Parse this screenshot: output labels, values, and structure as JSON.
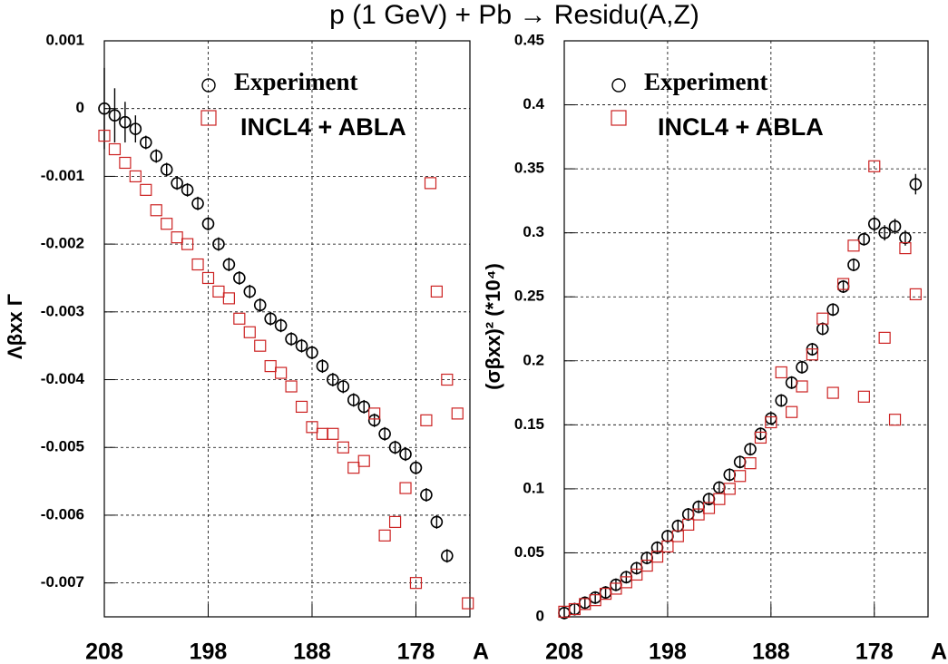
{
  "title": "p (1 GeV) + Pb → Residu(A,Z)",
  "chart_data": [
    {
      "type": "scatter",
      "xlabel": "A",
      "ylabel": "Λβxx Γ",
      "legend": "top-left",
      "xlim": [
        208,
        172.8
      ],
      "xticks": [
        208,
        198,
        188,
        178
      ],
      "ylim": [
        -0.0075,
        0.001
      ],
      "yticks": [
        0.001,
        0,
        -0.001,
        -0.002,
        -0.003,
        -0.004,
        -0.005,
        -0.006,
        -0.007
      ],
      "grid": true,
      "series": [
        {
          "name": "Experiment",
          "color": "#000000",
          "marker": "circle",
          "x": [
            208,
            207,
            206,
            205,
            204,
            203,
            202,
            201,
            200,
            199,
            198,
            197,
            196,
            195,
            194,
            193,
            192,
            191,
            190,
            189,
            188,
            187,
            186,
            185,
            184,
            183,
            182,
            181,
            180,
            179,
            178,
            177,
            176,
            175
          ],
          "values": [
            0,
            -0.0001,
            -0.0002,
            -0.0003,
            -0.0005,
            -0.0007,
            -0.0009,
            -0.0011,
            -0.0012,
            -0.0014,
            -0.0017,
            -0.002,
            -0.0023,
            -0.0025,
            -0.0027,
            -0.0029,
            -0.0031,
            -0.0032,
            -0.0034,
            -0.0035,
            -0.0036,
            -0.0038,
            -0.004,
            -0.0041,
            -0.0043,
            -0.0044,
            -0.0046,
            -0.0048,
            -0.005,
            -0.0051,
            -0.0053,
            -0.0057,
            -0.0061,
            -0.0066
          ],
          "errors": [
            0.0006,
            0.0004,
            0.0003,
            0.0002,
            0.0001,
            0.0001,
            0.0001,
            0.0001,
            0.0001,
            0.0001,
            0.0001,
            0.0001,
            0.0001,
            0.0001,
            0.0001,
            0.0001,
            0.0001,
            0.0001,
            0.0001,
            0.0001,
            0.0001,
            0.0001,
            0.0001,
            0.0001,
            0.0001,
            0.0001,
            0.0001,
            0.0001,
            0.0001,
            0.0001,
            0.0001,
            0.0001,
            0.0001,
            0.0001
          ]
        },
        {
          "name": "INCL4 + ABLA",
          "color": "#cc2222",
          "marker": "square",
          "x": [
            208,
            207,
            206,
            205,
            204,
            203,
            202,
            201,
            200,
            199,
            198,
            197,
            196,
            195,
            194,
            193,
            192,
            191,
            190,
            189,
            188,
            187,
            186,
            185,
            184,
            183,
            182,
            181,
            180,
            179,
            178,
            177,
            176.6,
            176,
            175,
            174,
            173
          ],
          "values": [
            -0.0004,
            -0.0006,
            -0.0008,
            -0.001,
            -0.0012,
            -0.0015,
            -0.0017,
            -0.0019,
            -0.002,
            -0.0023,
            -0.0025,
            -0.0027,
            -0.0028,
            -0.0031,
            -0.0033,
            -0.0035,
            -0.0038,
            -0.0039,
            -0.0041,
            -0.0044,
            -0.0047,
            -0.0048,
            -0.0048,
            -0.005,
            -0.0053,
            -0.0052,
            -0.0045,
            -0.0063,
            -0.0061,
            -0.0056,
            -0.007,
            -0.0046,
            -0.0011,
            -0.0027,
            -0.004,
            -0.0045,
            -0.0073
          ]
        }
      ]
    },
    {
      "type": "scatter",
      "xlabel": "A",
      "ylabel": "(σβxx)² (*10⁴)",
      "legend": "top-left",
      "xlim": [
        208,
        172.8
      ],
      "xticks": [
        208,
        198,
        188,
        178
      ],
      "ylim": [
        0,
        0.45
      ],
      "yticks": [
        0,
        0.05,
        0.1,
        0.15,
        0.2,
        0.25,
        0.3,
        0.35,
        0.4,
        0.45
      ],
      "grid": true,
      "series": [
        {
          "name": "Experiment",
          "color": "#000000",
          "marker": "circle",
          "x": [
            208,
            207,
            206,
            205,
            204,
            203,
            202,
            201,
            200,
            199,
            198,
            197,
            196,
            195,
            194,
            193,
            192,
            191,
            190,
            189,
            188,
            187,
            186,
            185,
            184,
            183,
            182,
            181,
            180,
            179,
            178,
            177,
            176,
            175,
            174
          ],
          "values": [
            0.003,
            0.006,
            0.011,
            0.015,
            0.019,
            0.025,
            0.031,
            0.038,
            0.046,
            0.054,
            0.063,
            0.071,
            0.08,
            0.086,
            0.092,
            0.101,
            0.111,
            0.121,
            0.131,
            0.143,
            0.155,
            0.169,
            0.183,
            0.195,
            0.209,
            0.225,
            0.24,
            0.258,
            0.275,
            0.295,
            0.307,
            0.3,
            0.305,
            0.296,
            0.338
          ],
          "errors": [
            0.005,
            0.005,
            0.005,
            0.005,
            0.005,
            0.005,
            0.005,
            0.005,
            0.005,
            0.005,
            0.005,
            0.005,
            0.005,
            0.005,
            0.005,
            0.005,
            0.005,
            0.005,
            0.005,
            0.005,
            0.005,
            0.005,
            0.005,
            0.005,
            0.005,
            0.005,
            0.005,
            0.005,
            0.005,
            0.005,
            0.006,
            0.006,
            0.006,
            0.006,
            0.008
          ]
        },
        {
          "name": "INCL4 + ABLA",
          "color": "#cc2222",
          "marker": "square",
          "x": [
            208,
            207,
            206,
            205,
            204,
            203,
            202,
            201,
            200,
            199,
            198,
            197,
            196,
            195,
            194,
            193,
            192,
            191,
            190,
            189,
            188,
            187,
            186,
            185,
            184,
            183,
            182,
            181,
            180,
            179,
            178,
            177,
            176,
            175,
            174
          ],
          "values": [
            0.004,
            0.006,
            0.01,
            0.013,
            0.018,
            0.022,
            0.027,
            0.033,
            0.04,
            0.047,
            0.055,
            0.063,
            0.072,
            0.08,
            0.085,
            0.092,
            0.1,
            0.11,
            0.12,
            0.14,
            0.152,
            0.191,
            0.16,
            0.18,
            0.205,
            0.233,
            0.175,
            0.26,
            0.29,
            0.172,
            0.352,
            0.218,
            0.154,
            0.288,
            0.252
          ]
        }
      ]
    }
  ]
}
